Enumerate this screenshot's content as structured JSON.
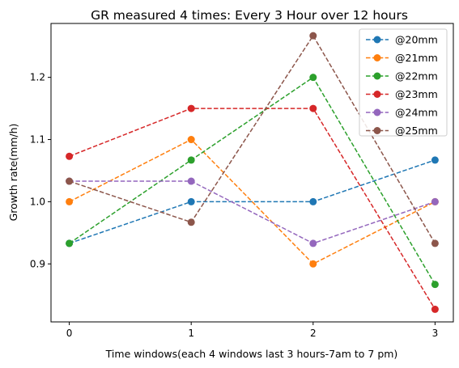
{
  "chart_data": {
    "type": "line",
    "title": "GR measured 4 times: Every 3 Hour over 12 hours",
    "xlabel": "Time windows(each 4 windows last 3 hours-7am to 7 pm)",
    "ylabel": "Growth rate(mm/h)",
    "x": [
      0,
      1,
      2,
      3
    ],
    "x_ticks": [
      "0",
      "1",
      "2",
      "3"
    ],
    "y_ticks": [
      "0.9",
      "1.0",
      "1.1",
      "1.2"
    ],
    "xlim": [
      -0.15,
      3.15
    ],
    "ylim": [
      0.8067,
      1.2867
    ],
    "grid": false,
    "legend_position": "top-right",
    "line_style": "dashed",
    "marker": "circle",
    "series": [
      {
        "name": "@20mm",
        "color": "#1f77b4",
        "values": [
          0.933,
          1.0,
          1.0,
          1.067
        ]
      },
      {
        "name": "@21mm",
        "color": "#ff7f0e",
        "values": [
          1.0,
          1.1,
          0.9,
          1.0
        ]
      },
      {
        "name": "@22mm",
        "color": "#2ca02c",
        "values": [
          0.933,
          1.067,
          1.2,
          0.867
        ]
      },
      {
        "name": "@23mm",
        "color": "#d62728",
        "values": [
          1.073,
          1.15,
          1.15,
          0.827
        ]
      },
      {
        "name": "@24mm",
        "color": "#9467bd",
        "values": [
          1.033,
          1.033,
          0.933,
          1.0
        ]
      },
      {
        "name": "@25mm",
        "color": "#8c564b",
        "values": [
          1.033,
          0.967,
          1.267,
          0.933
        ]
      }
    ]
  }
}
